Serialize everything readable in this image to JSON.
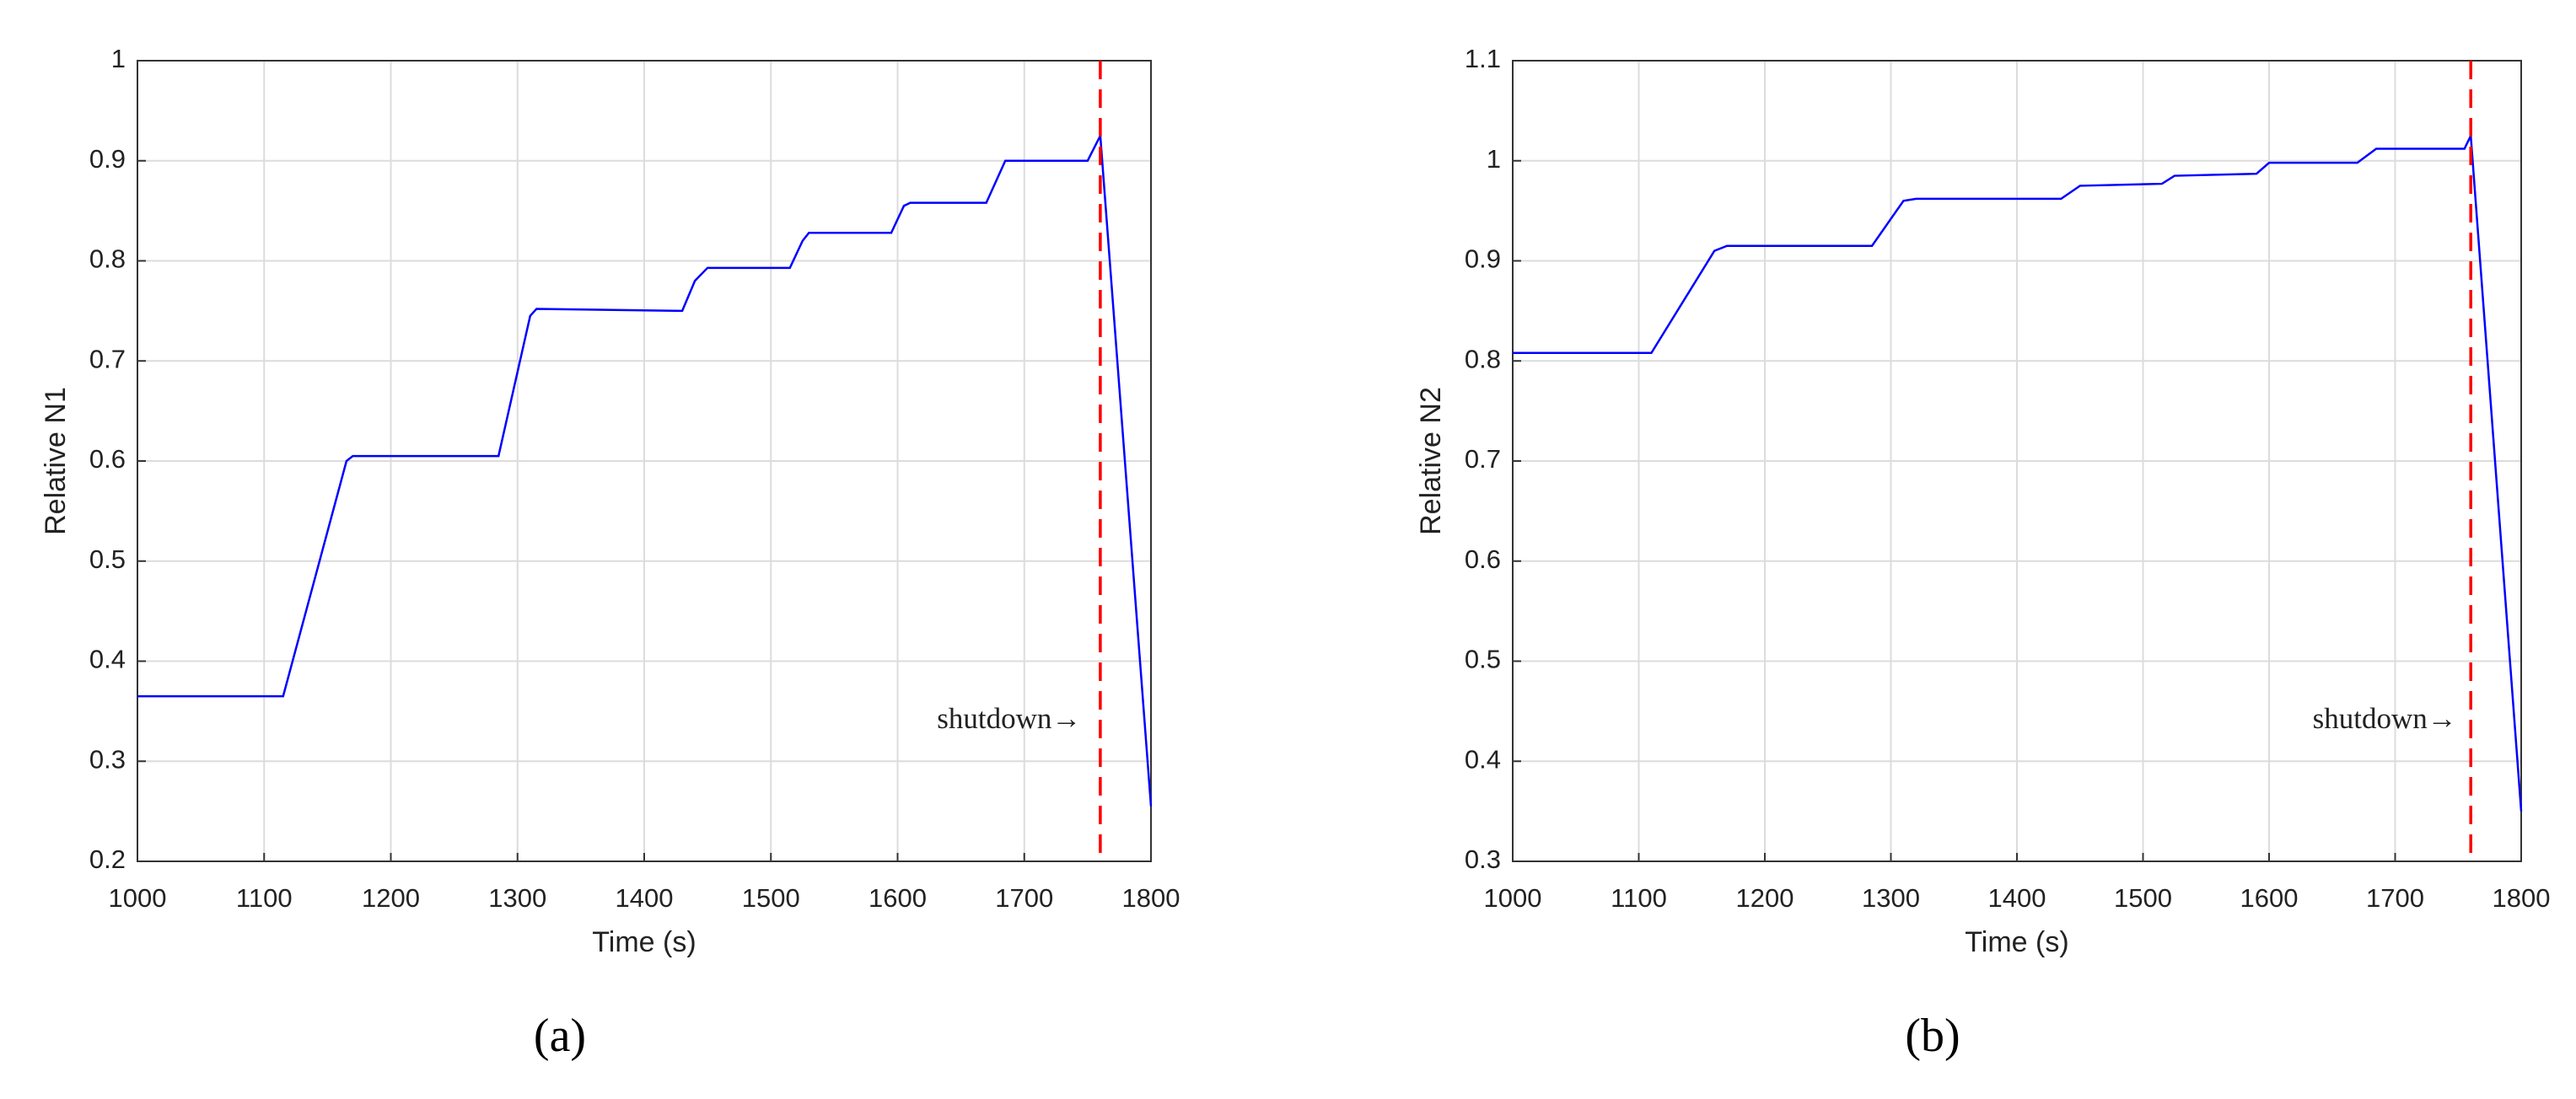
{
  "chart_data": [
    {
      "type": "line",
      "xlabel": "Time (s)",
      "ylabel": "Relative N1",
      "panel_label": "(a)",
      "xlim": [
        1000,
        1800
      ],
      "ylim": [
        0.2,
        1
      ],
      "xticks": [
        1000,
        1100,
        1200,
        1300,
        1400,
        1500,
        1600,
        1700,
        1800
      ],
      "yticks": [
        0.2,
        0.3,
        0.4,
        0.5,
        0.6,
        0.7,
        0.8,
        0.9,
        1
      ],
      "grid": true,
      "x": [
        1000,
        1115,
        1165,
        1170,
        1285,
        1310,
        1315,
        1430,
        1440,
        1450,
        1515,
        1525,
        1530,
        1595,
        1605,
        1610,
        1670,
        1685,
        1750,
        1760,
        1800
      ],
      "series": [
        {
          "color": "#0000ff",
          "values": [
            0.365,
            0.365,
            0.6,
            0.605,
            0.605,
            0.745,
            0.752,
            0.75,
            0.78,
            0.793,
            0.793,
            0.82,
            0.828,
            0.828,
            0.855,
            0.858,
            0.858,
            0.9,
            0.9,
            0.925,
            0.255
          ]
        }
      ],
      "vline": {
        "x": 1760,
        "color": "#ff0000"
      },
      "annotation": {
        "text": "shutdown→",
        "x": 1745,
        "y": 0.34
      }
    },
    {
      "type": "line",
      "xlabel": "Time (s)",
      "ylabel": "Relative N2",
      "panel_label": "(b)",
      "xlim": [
        1000,
        1800
      ],
      "ylim": [
        0.3,
        1.1
      ],
      "xticks": [
        1000,
        1100,
        1200,
        1300,
        1400,
        1500,
        1600,
        1700,
        1800
      ],
      "yticks": [
        0.3,
        0.4,
        0.5,
        0.6,
        0.7,
        0.8,
        0.9,
        1,
        1.1
      ],
      "grid": true,
      "x": [
        1000,
        1110,
        1160,
        1170,
        1285,
        1310,
        1320,
        1435,
        1450,
        1515,
        1525,
        1590,
        1600,
        1670,
        1685,
        1755,
        1760,
        1800
      ],
      "series": [
        {
          "color": "#0000ff",
          "values": [
            0.808,
            0.808,
            0.91,
            0.915,
            0.915,
            0.96,
            0.962,
            0.962,
            0.975,
            0.977,
            0.985,
            0.987,
            0.998,
            0.998,
            1.012,
            1.012,
            1.025,
            0.35
          ]
        }
      ],
      "vline": {
        "x": 1760,
        "color": "#ff0000"
      },
      "annotation": {
        "text": "shutdown→",
        "x": 1749,
        "y": 0.44
      }
    }
  ]
}
